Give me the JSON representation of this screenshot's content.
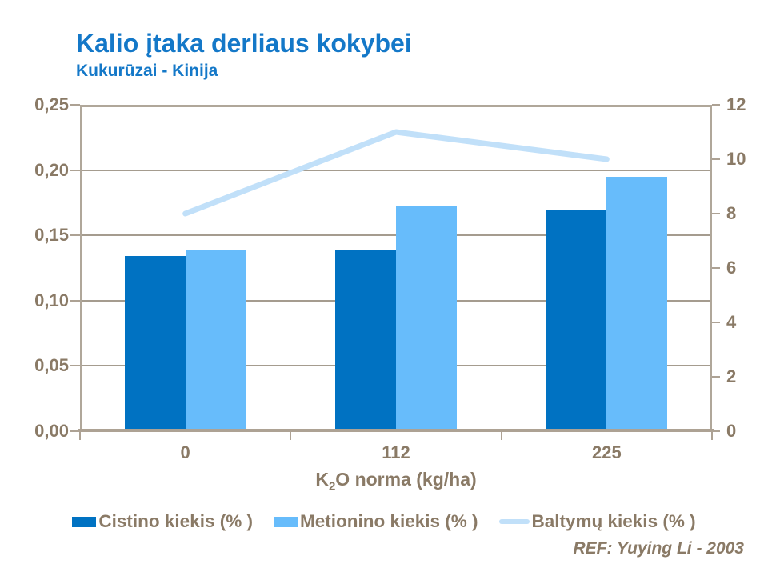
{
  "header": {
    "title": "Kalio įtaka derliaus kokybei",
    "subtitle": "Kukurūzai - Kinija"
  },
  "footer": {
    "ref": "REF: Yuying Li - 2003"
  },
  "colors": {
    "title_blue": "#1478C8",
    "cistino_bar": "#0072C2",
    "metionino_bar": "#67BCFB",
    "baltymu_line": "#C1E0F9",
    "axis_text": "#8A7A66",
    "axis_line": "#ADA294",
    "gridline": "#A59C8F",
    "background": "#FFFFFF"
  },
  "chart_data": {
    "type": "combo-bar-line",
    "categories": [
      "0",
      "112",
      "225"
    ],
    "series": [
      {
        "name": "Cistino kiekis (% )",
        "type": "bar",
        "axis": "left",
        "color": "#0072C2",
        "values": [
          0.134,
          0.139,
          0.169
        ]
      },
      {
        "name": "Metionino kiekis (% )",
        "type": "bar",
        "axis": "left",
        "color": "#67BCFB",
        "values": [
          0.139,
          0.172,
          0.195
        ]
      },
      {
        "name": "Baltymų kiekis (% )",
        "type": "line",
        "axis": "right",
        "color": "#C1E0F9",
        "values": [
          8,
          11,
          10
        ]
      }
    ],
    "xlabel": {
      "base": "K",
      "sub": "2",
      "rest": "O norma (kg/ha)"
    },
    "left_axis": {
      "min": 0,
      "max": 0.25,
      "step": 0.05,
      "labels": [
        "0,00",
        "0,05",
        "0,10",
        "0,15",
        "0,20",
        "0,25"
      ]
    },
    "right_axis": {
      "min": 0,
      "max": 12,
      "step": 2,
      "labels": [
        "0",
        "2",
        "4",
        "6",
        "8",
        "10",
        "12"
      ]
    },
    "grid": true,
    "legend_position": "bottom"
  }
}
